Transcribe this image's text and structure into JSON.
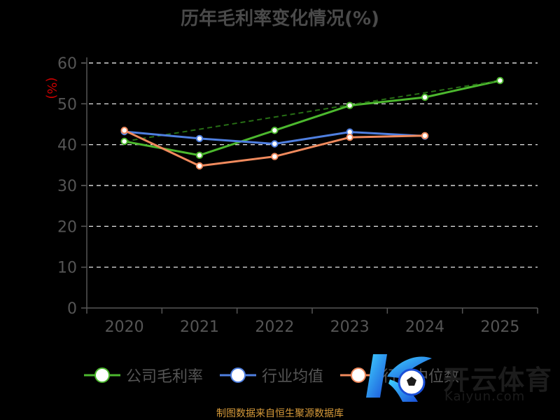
{
  "title": "历年毛利率变化情况(%)",
  "source": "制图数据来自恒生聚源数据库",
  "watermark": {
    "cn": "开云体育",
    "en": "Kaiyun.com"
  },
  "chart_data": {
    "type": "line",
    "title": "历年毛利率变化情况(%)",
    "ylabel": "(%)",
    "ylim": [
      0,
      60
    ],
    "yticks": [
      0,
      10,
      20,
      30,
      40,
      50,
      60
    ],
    "categories": [
      "2020",
      "2021",
      "2022",
      "2023",
      "2024",
      "2025"
    ],
    "grid": true,
    "legend_position": "bottom",
    "series": [
      {
        "name": "公司毛利率",
        "color": "#4cb82e",
        "values": [
          40.8,
          37.4,
          43.5,
          49.6,
          51.6,
          55.7
        ]
      },
      {
        "name": "行业均值",
        "color": "#4f7fe0",
        "values": [
          43.2,
          41.5,
          40.2,
          43.1,
          42.1,
          null
        ]
      },
      {
        "name": "行业中位数",
        "color": "#f08a5d",
        "values": [
          43.5,
          34.8,
          37.1,
          41.8,
          42.2,
          null
        ]
      }
    ],
    "colors": {
      "axis": "#555555",
      "grid": "#ffffff",
      "ylabel": "#cc0000"
    }
  }
}
